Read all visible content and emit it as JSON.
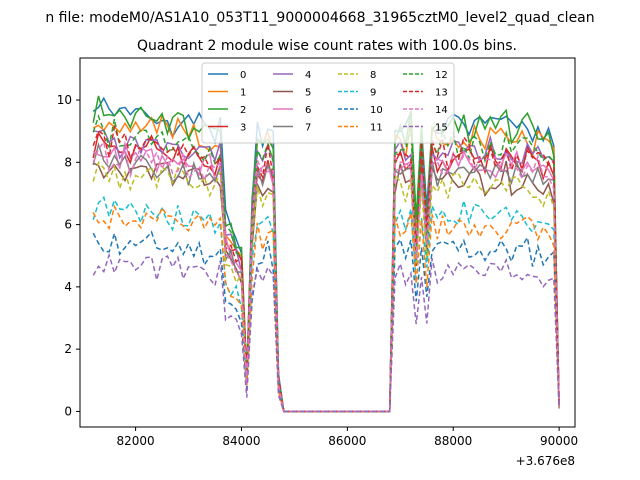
{
  "chart_data": {
    "type": "line",
    "suptitle": "n file: modeM0/AS1A10_053T11_9000004668_31965cztM0_level2_quad_clean",
    "title": "Quadrant 2 module wise count rates with 100.0s bins.",
    "xlabel": "",
    "ylabel": "",
    "x_offset_label": "+3.676e8",
    "xlim": [
      80950,
      90300
    ],
    "ylim": [
      -0.5,
      11.35
    ],
    "xticks": [
      82000,
      84000,
      86000,
      88000,
      90000
    ],
    "xtick_labels": [
      "82000",
      "84000",
      "86000",
      "88000",
      "90000"
    ],
    "yticks": [
      0,
      2,
      4,
      6,
      8,
      10
    ],
    "ytick_labels": [
      "0",
      "2",
      "4",
      "6",
      "8",
      "10"
    ],
    "grid": false,
    "legend_position": "upper-center",
    "legend_columns": 4,
    "series": [
      {
        "name": "0",
        "color": "#1f77b4",
        "dashed": false,
        "level": 9.6
      },
      {
        "name": "1",
        "color": "#ff7f0e",
        "dashed": false,
        "level": 9.2
      },
      {
        "name": "2",
        "color": "#2ca02c",
        "dashed": false,
        "level": 9.5
      },
      {
        "name": "3",
        "color": "#d62728",
        "dashed": false,
        "level": 8.5
      },
      {
        "name": "4",
        "color": "#9467bd",
        "dashed": false,
        "level": 8.7
      },
      {
        "name": "5",
        "color": "#8c564b",
        "dashed": false,
        "level": 7.8
      },
      {
        "name": "6",
        "color": "#e377c2",
        "dashed": false,
        "level": 8.3
      },
      {
        "name": "7",
        "color": "#7f7f7f",
        "dashed": false,
        "level": 8.0
      },
      {
        "name": "8",
        "color": "#bcbd22",
        "dashed": true,
        "level": 7.6
      },
      {
        "name": "9",
        "color": "#17becf",
        "dashed": true,
        "level": 6.5
      },
      {
        "name": "10",
        "color": "#1f77b4",
        "dashed": true,
        "level": 5.4
      },
      {
        "name": "11",
        "color": "#ff7f0e",
        "dashed": true,
        "level": 6.2
      },
      {
        "name": "12",
        "color": "#2ca02c",
        "dashed": true,
        "level": 8.9
      },
      {
        "name": "13",
        "color": "#d62728",
        "dashed": true,
        "level": 8.6
      },
      {
        "name": "14",
        "color": "#e377c2",
        "dashed": true,
        "level": 8.2
      },
      {
        "name": "15",
        "color": "#9467bd",
        "dashed": true,
        "level": 4.7
      }
    ],
    "envelope": {
      "x": [
        81200,
        81300,
        81400,
        81500,
        81600,
        81700,
        81800,
        81900,
        82000,
        82100,
        82200,
        82300,
        82400,
        82500,
        82600,
        82700,
        82800,
        82900,
        83000,
        83100,
        83200,
        83300,
        83400,
        83500,
        83600,
        83700,
        83800,
        83900,
        84000,
        84100,
        84200,
        84300,
        84400,
        84500,
        84600,
        84700,
        84800,
        84900,
        85000,
        85100,
        85200,
        85300,
        85400,
        85500,
        85600,
        85700,
        85800,
        85900,
        86000,
        86100,
        86200,
        86300,
        86400,
        86500,
        86600,
        86700,
        86800,
        86900,
        87000,
        87100,
        87200,
        87300,
        87400,
        87500,
        87600,
        87700,
        87800,
        87900,
        88000,
        88100,
        88200,
        88300,
        88400,
        88500,
        88600,
        88700,
        88800,
        88900,
        89000,
        89100,
        89200,
        89300,
        89400,
        89500,
        89600,
        89700,
        89800,
        89900,
        90000
      ],
      "factor": [
        1.0,
        1.03,
        1.01,
        0.99,
        1.02,
        0.98,
        1.0,
        0.97,
        1.01,
        0.99,
        0.98,
        1.0,
        0.97,
        0.99,
        0.98,
        0.96,
        0.99,
        0.97,
        0.95,
        0.98,
        0.96,
        0.94,
        0.95,
        0.93,
        0.96,
        0.64,
        0.62,
        0.58,
        0.54,
        0.12,
        0.72,
        0.94,
        0.9,
        0.96,
        0.9,
        0.12,
        0.0,
        0.0,
        0.0,
        0.0,
        0.0,
        0.0,
        0.0,
        0.0,
        0.0,
        0.0,
        0.0,
        0.0,
        0.0,
        0.0,
        0.0,
        0.0,
        0.0,
        0.0,
        0.0,
        0.0,
        0.0,
        0.95,
        0.97,
        0.93,
        0.98,
        0.62,
        0.96,
        0.66,
        0.98,
        0.94,
        0.97,
        0.95,
        0.99,
        0.96,
        0.98,
        0.95,
        0.97,
        0.96,
        0.94,
        0.97,
        0.95,
        0.96,
        0.98,
        0.94,
        0.96,
        0.95,
        0.97,
        0.93,
        0.95,
        0.92,
        0.94,
        0.9,
        0.02
      ]
    }
  }
}
